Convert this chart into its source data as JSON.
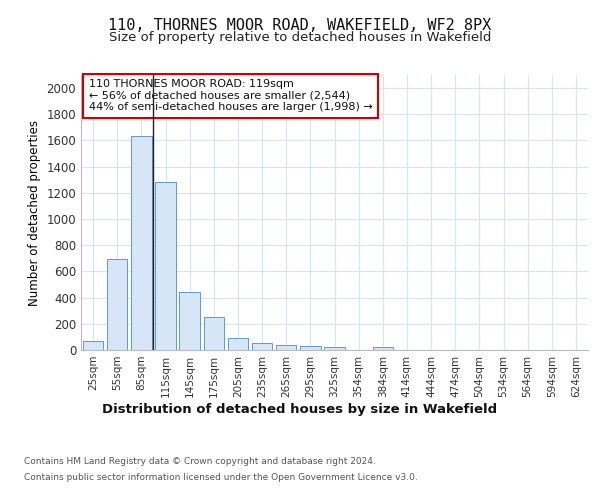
{
  "title": "110, THORNES MOOR ROAD, WAKEFIELD, WF2 8PX",
  "subtitle": "Size of property relative to detached houses in Wakefield",
  "xlabel": "Distribution of detached houses by size in Wakefield",
  "ylabel": "Number of detached properties",
  "categories": [
    "25sqm",
    "55sqm",
    "85sqm",
    "115sqm",
    "145sqm",
    "175sqm",
    "205sqm",
    "235sqm",
    "265sqm",
    "295sqm",
    "325sqm",
    "354sqm",
    "384sqm",
    "414sqm",
    "444sqm",
    "474sqm",
    "504sqm",
    "534sqm",
    "564sqm",
    "594sqm",
    "624sqm"
  ],
  "values": [
    65,
    695,
    1635,
    1280,
    440,
    255,
    90,
    55,
    40,
    30,
    25,
    0,
    20,
    0,
    0,
    0,
    0,
    0,
    0,
    0,
    0
  ],
  "bar_color": "#d6e6f7",
  "bar_edge_color": "#5b9bd5",
  "annotation_text_line1": "110 THORNES MOOR ROAD: 119sqm",
  "annotation_text_line2": "← 56% of detached houses are smaller (2,544)",
  "annotation_text_line3": "44% of semi-detached houses are larger (1,998) →",
  "vline_x": 3.42,
  "ylim": [
    0,
    2100
  ],
  "yticks": [
    0,
    200,
    400,
    600,
    800,
    1000,
    1200,
    1400,
    1600,
    1800,
    2000
  ],
  "footer_line1": "Contains HM Land Registry data © Crown copyright and database right 2024.",
  "footer_line2": "Contains public sector information licensed under the Open Government Licence v3.0.",
  "background_color": "#ffffff",
  "plot_bg_color": "#ffffff",
  "grid_color": "#d8e4f0",
  "annotation_box_color": "#ffffff",
  "annotation_border_color": "#cc0000"
}
